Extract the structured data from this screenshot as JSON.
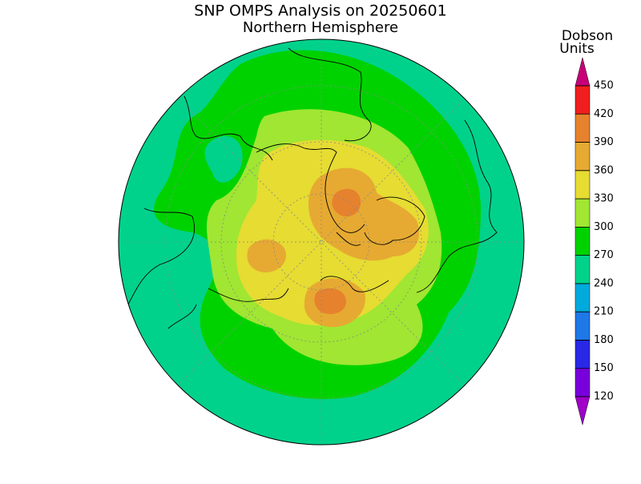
{
  "title": "SNP OMPS Analysis on 20250601",
  "subtitle": "Northern Hemisphere",
  "colorbar": {
    "label": [
      "Dobson",
      "Units"
    ],
    "ticks": [
      120,
      150,
      180,
      210,
      240,
      270,
      300,
      330,
      360,
      390,
      420,
      450
    ],
    "colors": [
      "#a000c8",
      "#7800dc",
      "#2828e6",
      "#1e78e6",
      "#00aadc",
      "#00d28c",
      "#00d200",
      "#a0e632",
      "#e6dc32",
      "#e6aa32",
      "#e6822d",
      "#f01e1e",
      "#c80078"
    ]
  }
}
